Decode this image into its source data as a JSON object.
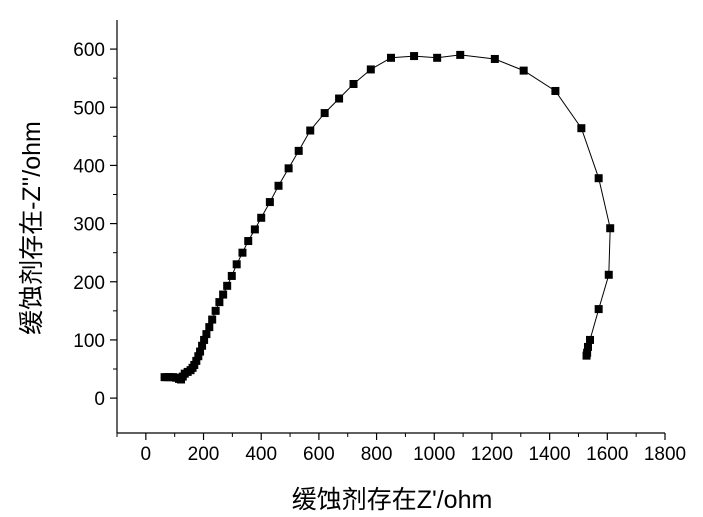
{
  "chart_data": {
    "type": "scatter",
    "title": "",
    "xlabel": "缓蚀剂存在Z'/ohm",
    "ylabel": "缓蚀剂存在-Z''/ohm",
    "xlim": [
      -100,
      1800
    ],
    "ylim": [
      -60,
      650
    ],
    "xticks": [
      0,
      200,
      400,
      600,
      800,
      1000,
      1200,
      1400,
      1600,
      1800
    ],
    "yticks": [
      0,
      100,
      200,
      300,
      400,
      500,
      600
    ],
    "grid": false,
    "legend": "none",
    "marker": "filled-square",
    "connect_points": true,
    "series": [
      {
        "color": "#000000",
        "points": [
          [
            65,
            36
          ],
          [
            75,
            36
          ],
          [
            85,
            36
          ],
          [
            95,
            36
          ],
          [
            105,
            35
          ],
          [
            115,
            33
          ],
          [
            122,
            32
          ],
          [
            128,
            37
          ],
          [
            135,
            42
          ],
          [
            145,
            45
          ],
          [
            155,
            48
          ],
          [
            162,
            52
          ],
          [
            168,
            57
          ],
          [
            175,
            64
          ],
          [
            182,
            72
          ],
          [
            188,
            80
          ],
          [
            195,
            90
          ],
          [
            202,
            100
          ],
          [
            210,
            110
          ],
          [
            220,
            122
          ],
          [
            230,
            135
          ],
          [
            242,
            150
          ],
          [
            255,
            165
          ],
          [
            268,
            178
          ],
          [
            282,
            193
          ],
          [
            298,
            210
          ],
          [
            315,
            230
          ],
          [
            335,
            250
          ],
          [
            355,
            270
          ],
          [
            378,
            290
          ],
          [
            400,
            310
          ],
          [
            430,
            337
          ],
          [
            460,
            365
          ],
          [
            495,
            395
          ],
          [
            530,
            425
          ],
          [
            570,
            460
          ],
          [
            620,
            490
          ],
          [
            670,
            515
          ],
          [
            720,
            540
          ],
          [
            780,
            565
          ],
          [
            850,
            585
          ],
          [
            930,
            588
          ],
          [
            1010,
            585
          ],
          [
            1090,
            590
          ],
          [
            1210,
            583
          ],
          [
            1310,
            563
          ],
          [
            1420,
            528
          ],
          [
            1510,
            464
          ],
          [
            1570,
            378
          ],
          [
            1610,
            292
          ],
          [
            1605,
            212
          ],
          [
            1570,
            153
          ],
          [
            1540,
            100
          ],
          [
            1533,
            88
          ],
          [
            1530,
            78
          ],
          [
            1528,
            73
          ]
        ]
      }
    ]
  }
}
